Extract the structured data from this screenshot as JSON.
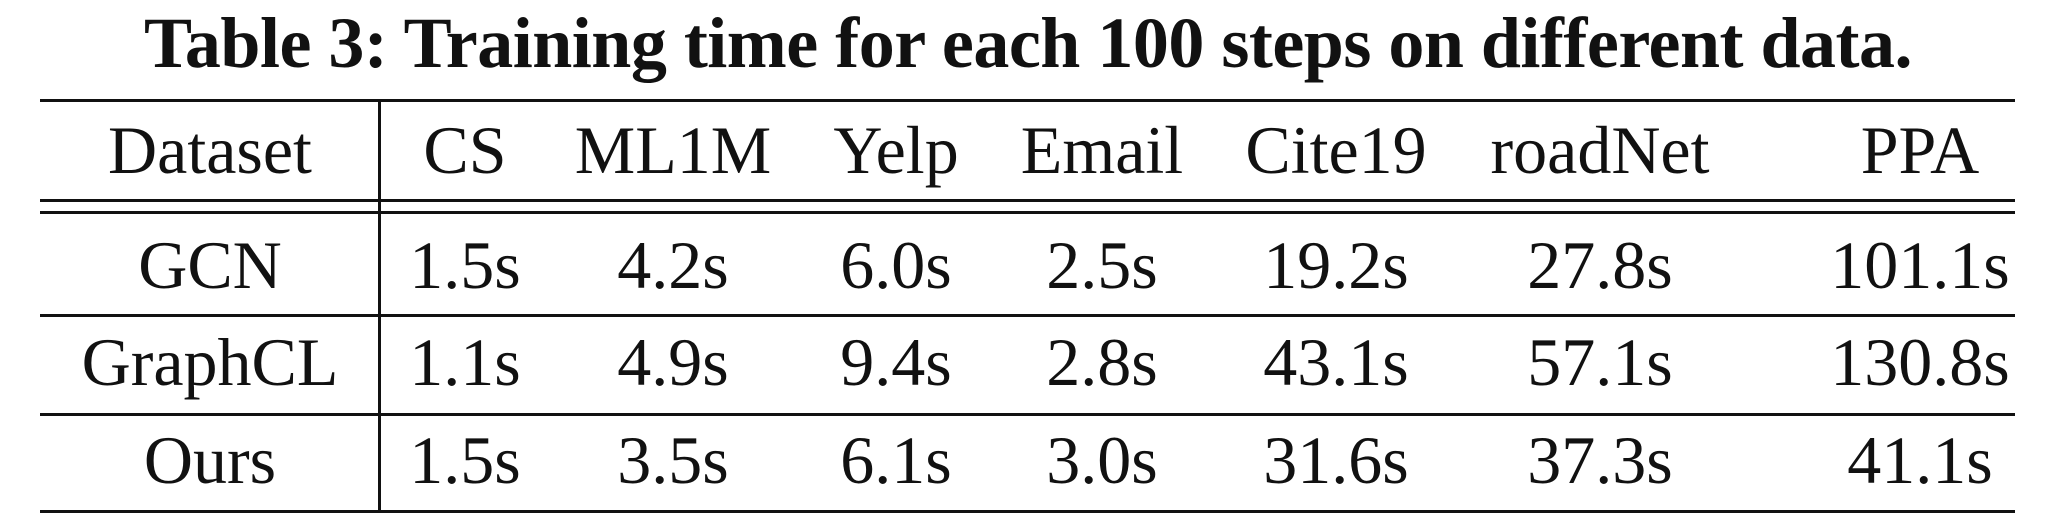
{
  "caption": "Table 3: Training time for each 100 steps on different data.",
  "header": {
    "label": "Dataset",
    "columns": [
      "CS",
      "ML1M",
      "Yelp",
      "Email",
      "Cite19",
      "roadNet",
      "PPA"
    ]
  },
  "rows": [
    {
      "method": "GCN",
      "values": [
        "1.5s",
        "4.2s",
        "6.0s",
        "2.5s",
        "19.2s",
        "27.8s",
        "101.1s"
      ]
    },
    {
      "method": "GraphCL",
      "values": [
        "1.1s",
        "4.9s",
        "9.4s",
        "2.8s",
        "43.1s",
        "57.1s",
        "130.8s"
      ]
    },
    {
      "method": "Ours",
      "values": [
        "1.5s",
        "3.5s",
        "6.1s",
        "3.0s",
        "31.6s",
        "37.3s",
        "41.1s"
      ]
    }
  ]
}
